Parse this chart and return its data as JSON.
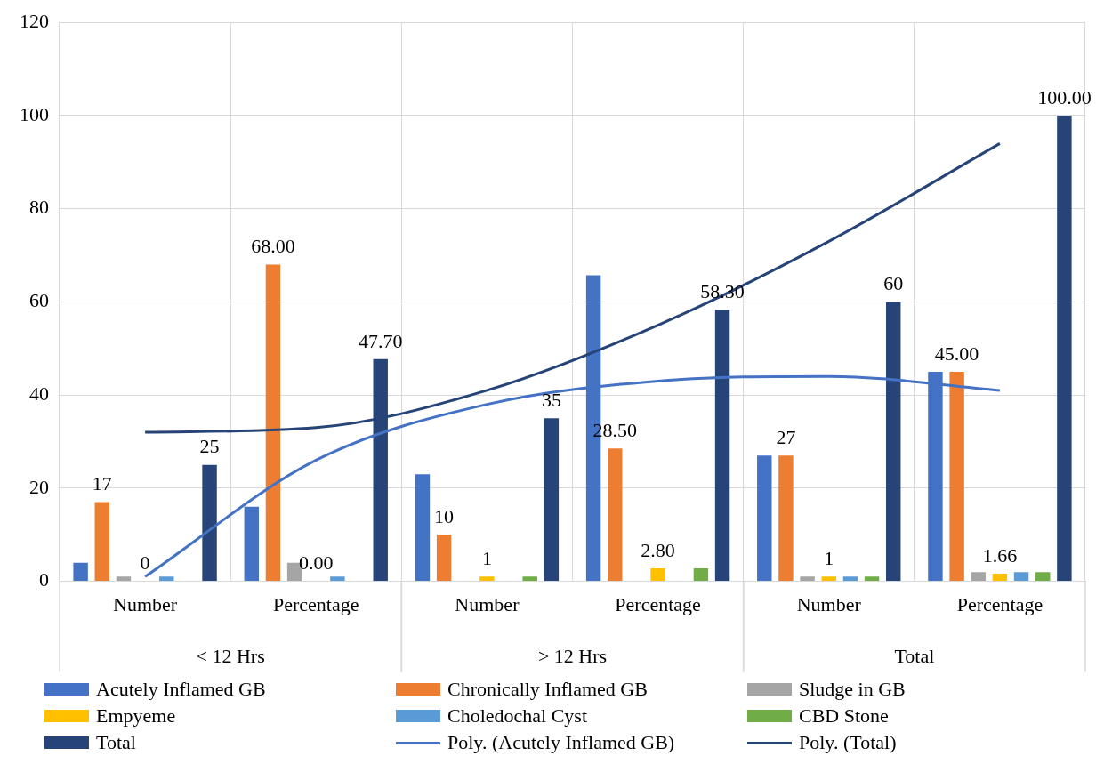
{
  "chart_data": {
    "type": "bar",
    "categories": [
      "Number",
      "Percentage",
      "Number",
      "Percentage",
      "Number",
      "Percentage"
    ],
    "annotations": [
      "< 12 Hrs",
      "> 12 Hrs",
      "Total"
    ],
    "ylim": [
      0,
      120
    ],
    "yticks": [
      0,
      20,
      40,
      60,
      80,
      100,
      120
    ],
    "grid": true,
    "legend": "bottom",
    "series": [
      {
        "name": "Acutely Inflamed GB",
        "color": "#4472c4",
        "values": [
          4,
          16,
          23,
          65.7,
          27,
          45
        ]
      },
      {
        "name": "Chronically Inflamed GB",
        "color": "#ed7d31",
        "values": [
          17,
          68,
          10,
          28.5,
          27,
          45
        ],
        "value_labels": [
          "17",
          "68.00",
          "10",
          "28.50",
          "27",
          "45.00"
        ]
      },
      {
        "name": "Sludge in GB",
        "color": "#a5a5a5",
        "values": [
          1,
          4,
          0,
          0,
          1,
          2
        ]
      },
      {
        "name": "Empyeme",
        "color": "#ffc000",
        "values": [
          0,
          0,
          1,
          2.8,
          1,
          1.66
        ],
        "value_labels": [
          "0",
          "0.00",
          "1",
          "2.80",
          "1",
          "1.66"
        ]
      },
      {
        "name": "Choledochal Cyst",
        "color": "#5b9bd5",
        "values": [
          1,
          1,
          0,
          0,
          1,
          2
        ]
      },
      {
        "name": "CBD Stone",
        "color": "#70ad47",
        "values": [
          0,
          0,
          1,
          2.8,
          1,
          2
        ]
      },
      {
        "name": "Total",
        "color": "#264478",
        "values": [
          25,
          47.7,
          35,
          58.3,
          60,
          100
        ],
        "value_labels": [
          "25",
          "47.70",
          "35",
          "58.30",
          "60",
          "100.00"
        ]
      },
      {
        "name": "Poly. (Acutely Inflamed GB)",
        "type": "line",
        "color": "#4472c4",
        "values": [
          1,
          26,
          38,
          43,
          44,
          41
        ]
      },
      {
        "name": "Poly. (Total)",
        "type": "line",
        "color": "#264478",
        "values": [
          32,
          33,
          41,
          55,
          73,
          94
        ]
      }
    ]
  }
}
